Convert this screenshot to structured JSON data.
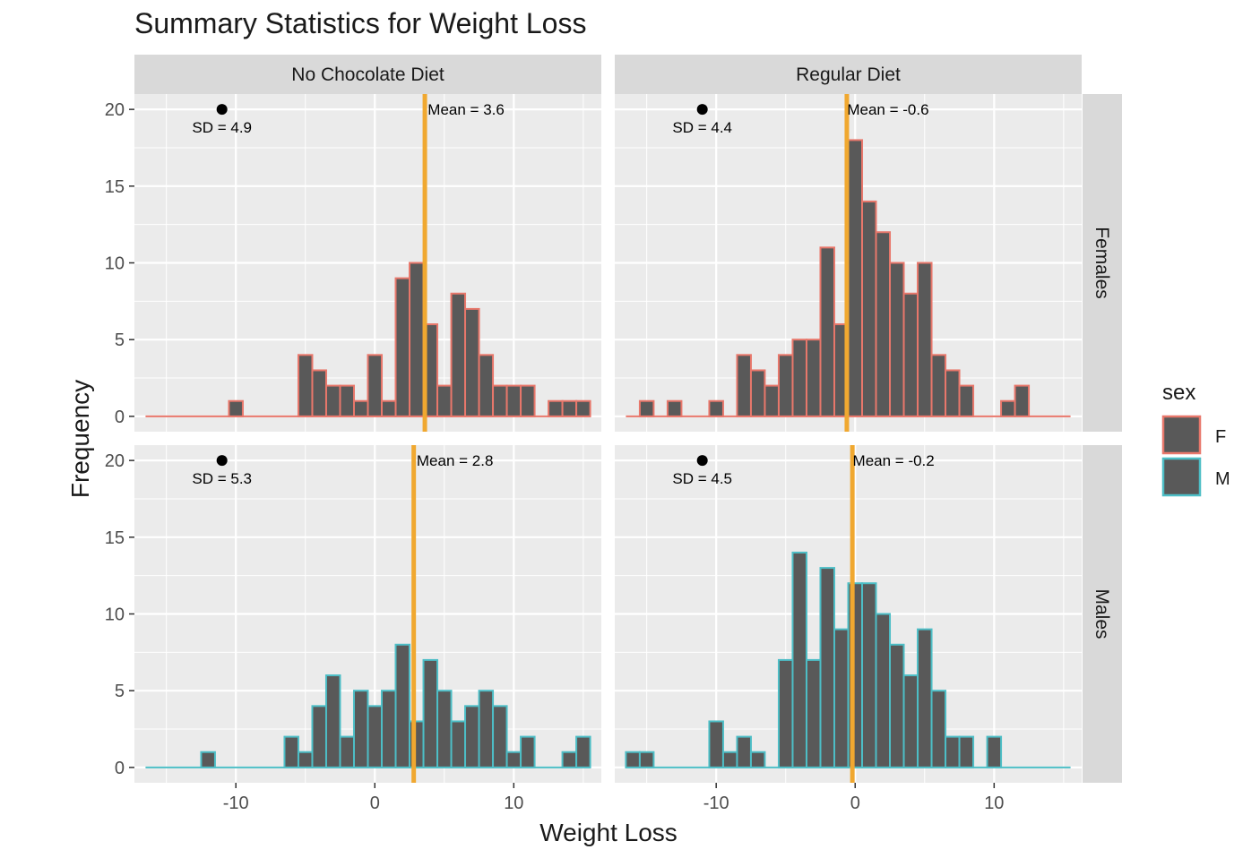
{
  "colors": {
    "panel_bg": "#ebebeb",
    "strip_bg": "#d9d9d9",
    "grid": "#ffffff",
    "bar_fill": "#595959",
    "mean_line": "#f0a830",
    "sex_F": "#e8776b",
    "sex_M": "#4dbec6",
    "text": "#1a1a1a",
    "tick_text": "#4d4d4d"
  },
  "chart_data": {
    "type": "bar",
    "title": "Summary Statistics for Weight Loss",
    "xlabel": "Weight Loss",
    "ylabel": "Frequency",
    "xlim": [
      -17.3,
      16.3
    ],
    "ylim": [
      -1,
      21
    ],
    "x_ticks": [
      -10,
      0,
      10
    ],
    "y_ticks": [
      0,
      5,
      10,
      15,
      20
    ],
    "column_strips": [
      "No Chocolate Diet",
      "Regular Diet"
    ],
    "row_strips": [
      "Females",
      "Males"
    ],
    "legend": {
      "title": "sex",
      "position": "right",
      "items": [
        {
          "label": "F",
          "key": "sex_F"
        },
        {
          "label": "M",
          "key": "sex_M"
        }
      ]
    },
    "bins": {
      "start": -16.5,
      "width": 1.0,
      "note": "first entry is the bin centred on -16"
    },
    "panels": [
      {
        "row": "Females",
        "col": "No Chocolate Diet",
        "sex": "F",
        "mean": 3.6,
        "mean_label": "Mean = 3.6",
        "sd": 4.9,
        "sd_label": "SD = 4.9",
        "counts": [
          0,
          0,
          0,
          0,
          0,
          0,
          1,
          0,
          0,
          0,
          0,
          4,
          3,
          2,
          2,
          1,
          4,
          1,
          9,
          10,
          6,
          2,
          8,
          7,
          4,
          2,
          2,
          2,
          0,
          1,
          1,
          1
        ]
      },
      {
        "row": "Females",
        "col": "Regular Diet",
        "sex": "F",
        "mean": -0.6,
        "mean_label": "Mean = -0.6",
        "sd": 4.4,
        "sd_label": "SD = 4.4",
        "counts": [
          0,
          1,
          0,
          1,
          0,
          0,
          1,
          0,
          4,
          3,
          2,
          4,
          5,
          5,
          11,
          6,
          18,
          14,
          12,
          10,
          8,
          10,
          4,
          3,
          2,
          0,
          0,
          1,
          2,
          0,
          0,
          0
        ]
      },
      {
        "row": "Males",
        "col": "No Chocolate Diet",
        "sex": "M",
        "mean": 2.8,
        "mean_label": "Mean = 2.8",
        "sd": 5.3,
        "sd_label": "SD = 5.3",
        "counts": [
          0,
          0,
          0,
          0,
          1,
          0,
          0,
          0,
          0,
          0,
          2,
          1,
          4,
          6,
          2,
          5,
          4,
          5,
          8,
          3,
          7,
          5,
          3,
          4,
          5,
          4,
          1,
          2,
          0,
          0,
          1,
          2
        ]
      },
      {
        "row": "Males",
        "col": "Regular Diet",
        "sex": "M",
        "mean": -0.2,
        "mean_label": "Mean = -0.2",
        "sd": 4.5,
        "sd_label": "SD = 4.5",
        "counts": [
          1,
          1,
          0,
          0,
          0,
          0,
          3,
          1,
          2,
          1,
          0,
          7,
          14,
          7,
          13,
          9,
          12,
          12,
          10,
          8,
          6,
          9,
          5,
          2,
          2,
          0,
          2,
          0,
          0,
          0,
          0,
          0
        ]
      }
    ],
    "sd_marker": {
      "x": -11,
      "y": 20
    }
  }
}
